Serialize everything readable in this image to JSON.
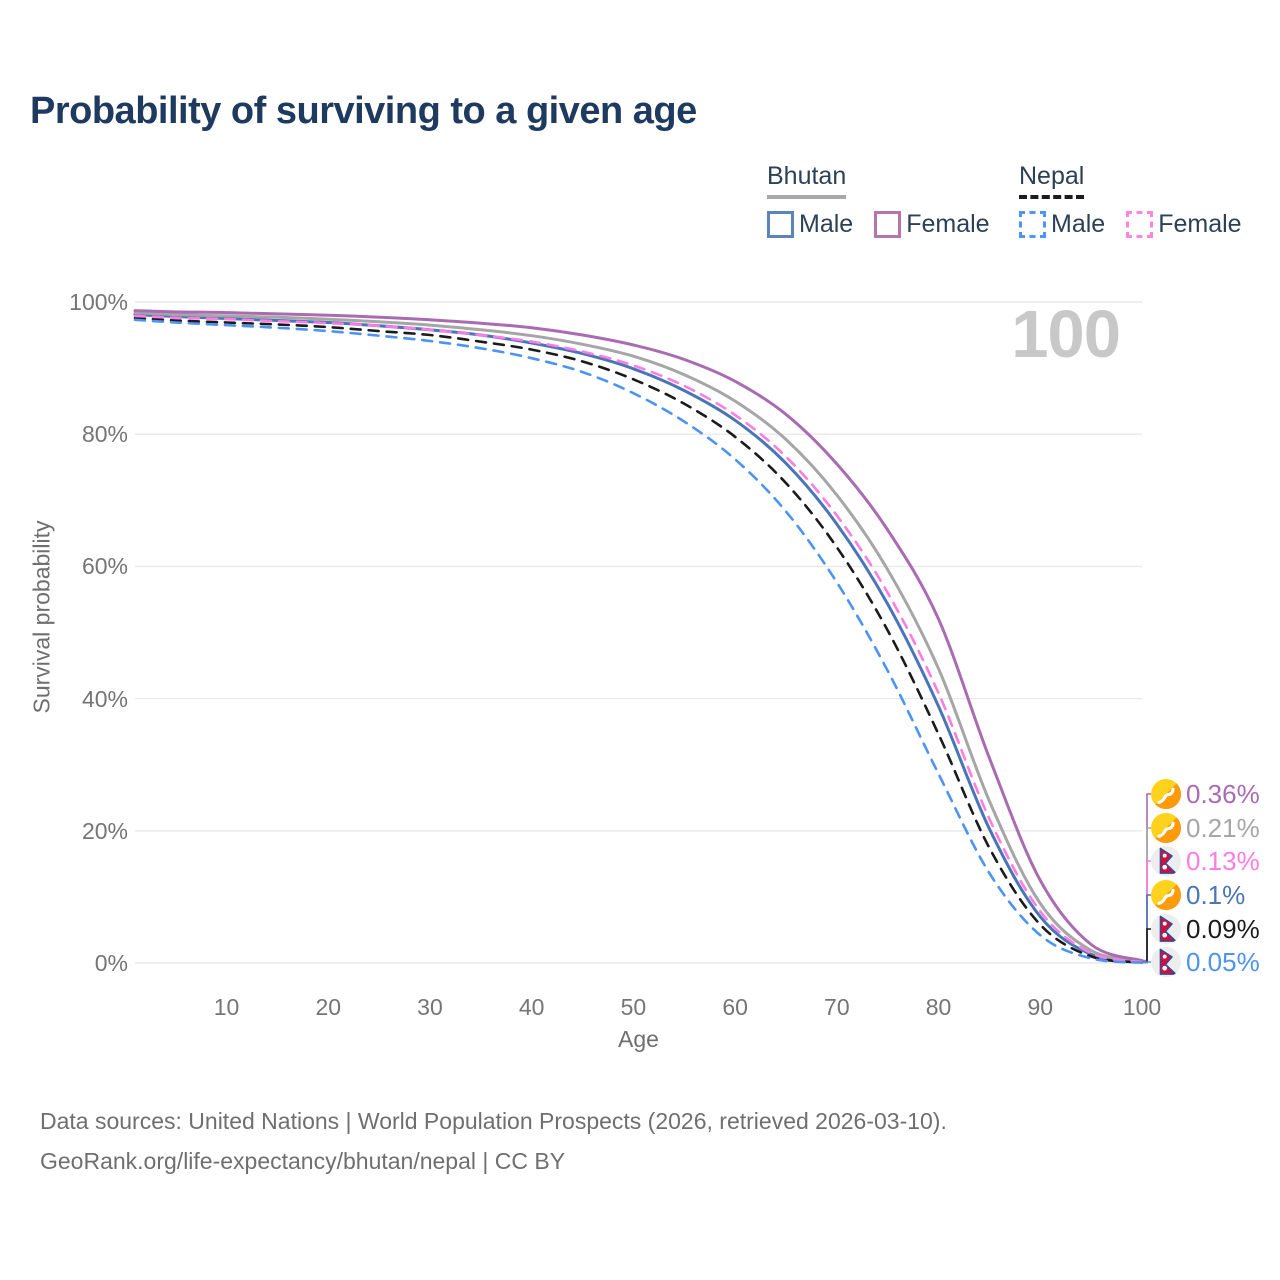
{
  "title": "Probability of surviving to a given age",
  "watermark": "100",
  "legend": {
    "groups": [
      {
        "country": "Bhutan",
        "line_style": "solid",
        "underline_color": "#a8a8a8",
        "items": [
          {
            "label": "Male",
            "box_color": "#5b84b8",
            "style": "solid"
          },
          {
            "label": "Female",
            "box_color": "#b476ad",
            "style": "solid"
          }
        ]
      },
      {
        "country": "Nepal",
        "line_style": "dashed",
        "underline_color": "#1c1c1c",
        "items": [
          {
            "label": "Male",
            "box_color": "#4d94f5",
            "style": "dashed"
          },
          {
            "label": "Female",
            "box_color": "#ff85e0",
            "style": "dashed"
          }
        ]
      }
    ]
  },
  "chart_data": {
    "type": "line",
    "title": "Probability of surviving to a given age",
    "xlabel": "Age",
    "ylabel": "Survival probability",
    "xlim": [
      1,
      100
    ],
    "ylim": [
      0,
      100
    ],
    "grid": "horizontal",
    "x_ticks": [
      10,
      20,
      30,
      40,
      50,
      60,
      70,
      80,
      90,
      100
    ],
    "y_ticks": [
      0,
      20,
      40,
      60,
      80,
      100
    ],
    "y_tick_suffix": "%",
    "x": [
      1,
      5,
      10,
      15,
      20,
      25,
      30,
      35,
      40,
      45,
      50,
      55,
      60,
      65,
      70,
      75,
      80,
      85,
      90,
      95,
      100
    ],
    "series": [
      {
        "name": "Bhutan — Female",
        "country": "Bhutan",
        "sex": "Female",
        "color": "#a96bb1",
        "dash": "solid",
        "flag": "bhutan",
        "end_label": "0.36%",
        "values": [
          98.7,
          98.5,
          98.4,
          98.2,
          98.0,
          97.7,
          97.3,
          96.8,
          96.1,
          95.0,
          93.5,
          91.3,
          88.0,
          83.0,
          75.5,
          65.5,
          52.0,
          31.0,
          12.5,
          2.8,
          0.36
        ]
      },
      {
        "name": "Bhutan — Both sexes",
        "country": "Bhutan",
        "sex": "Both",
        "color": "#a6a6a6",
        "dash": "solid",
        "flag": "bhutan",
        "end_label": "0.21%",
        "values": [
          98.4,
          98.1,
          97.9,
          97.7,
          97.4,
          97.0,
          96.5,
          95.8,
          94.9,
          93.6,
          91.8,
          89.0,
          85.0,
          79.2,
          70.8,
          59.5,
          44.5,
          24.5,
          9.0,
          1.9,
          0.21
        ]
      },
      {
        "name": "Nepal — Female",
        "country": "Nepal",
        "sex": "Female",
        "color": "#ff7be5",
        "dash": "dashed",
        "flag": "nepal",
        "end_label": "0.13%",
        "values": [
          97.9,
          97.6,
          97.4,
          97.1,
          96.8,
          96.4,
          95.8,
          95.0,
          94.0,
          92.5,
          90.4,
          87.3,
          82.9,
          76.6,
          67.7,
          56.0,
          40.8,
          21.8,
          7.8,
          1.5,
          0.13
        ]
      },
      {
        "name": "Bhutan — Male",
        "country": "Bhutan",
        "sex": "Male",
        "color": "#4a76b8",
        "dash": "solid",
        "flag": "bhutan",
        "end_label": "0.1%",
        "values": [
          98.1,
          97.8,
          97.5,
          97.2,
          96.9,
          96.4,
          95.8,
          95.0,
          93.8,
          92.2,
          89.9,
          86.6,
          82.1,
          75.6,
          66.4,
          54.3,
          38.8,
          20.3,
          7.0,
          1.3,
          0.1
        ]
      },
      {
        "name": "Nepal — Both sexes",
        "country": "Nepal",
        "sex": "Both",
        "color": "#1b1b1b",
        "dash": "dashed",
        "flag": "nepal",
        "end_label": "0.09%",
        "values": [
          97.6,
          97.2,
          96.9,
          96.6,
          96.2,
          95.6,
          95.0,
          94.0,
          92.8,
          91.0,
          88.3,
          84.6,
          79.6,
          72.6,
          62.9,
          50.3,
          34.6,
          17.4,
          5.8,
          1.0,
          0.09
        ]
      },
      {
        "name": "Nepal — Male",
        "country": "Nepal",
        "sex": "Male",
        "color": "#4d93f2",
        "dash": "dashed",
        "flag": "nepal",
        "end_label": "0.05%",
        "values": [
          97.3,
          96.9,
          96.5,
          96.1,
          95.6,
          94.9,
          94.1,
          93.0,
          91.5,
          89.4,
          86.2,
          81.9,
          76.2,
          68.3,
          57.6,
          44.2,
          28.6,
          13.6,
          4.2,
          0.7,
          0.05
        ]
      }
    ],
    "legend_position": "top-right",
    "annotations": [
      "100"
    ]
  },
  "colors": {
    "title": "#1e3a5f",
    "axis_text": "#757575",
    "gridline": "#e9e9e9",
    "watermark": "#c8c8c8",
    "footer_text": "#6f6f6f",
    "bhutan_flag_yellow": "#ffd21e",
    "bhutan_flag_orange": "#ff910a",
    "nepal_flag_crimson": "#d0103a",
    "nepal_flag_blue": "#2a4f9e"
  },
  "icons": [
    {
      "name": "bhutan-flag-icon",
      "meaning": "Flag of Bhutan (round)"
    },
    {
      "name": "nepal-flag-icon",
      "meaning": "Flag of Nepal (round)"
    }
  ],
  "footer": {
    "line1": "Data sources: United Nations | World Population Prospects (2026, retrieved 2026-03-10).",
    "line2": "GeoRank.org/life-expectancy/bhutan/nepal | CC BY"
  }
}
